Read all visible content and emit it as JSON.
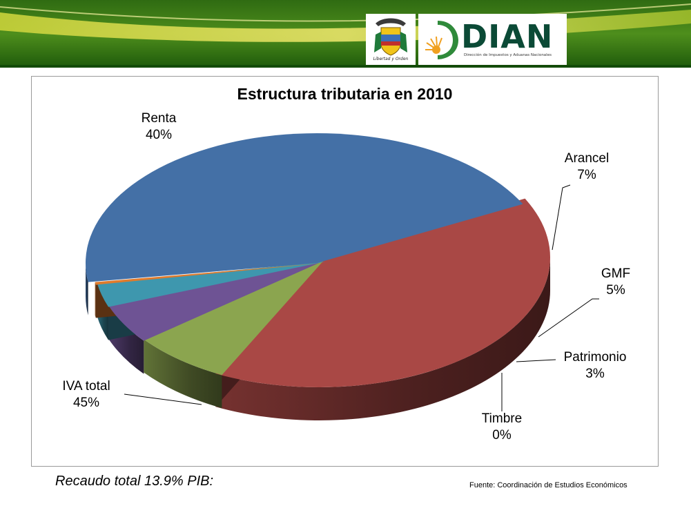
{
  "header": {
    "coat_caption": "Libertad y Orden",
    "brand_name": "DIAN",
    "brand_subtitle": "Dirección de Impuestos y Aduanas Nacionales"
  },
  "chart_data": {
    "type": "pie",
    "title": "Estructura tributaria en 2010",
    "slices": [
      {
        "label": "Renta",
        "value": 40,
        "value_label": "40%",
        "color": "#a94845"
      },
      {
        "label": "Arancel",
        "value": 7,
        "value_label": "7%",
        "color": "#8ba54f"
      },
      {
        "label": "GMF",
        "value": 5,
        "value_label": "5%",
        "color": "#6e5394"
      },
      {
        "label": "Patrimonio",
        "value": 3,
        "value_label": "3%",
        "color": "#3e97ae"
      },
      {
        "label": "Timbre",
        "value": 0,
        "value_label": "0%",
        "color": "#e07b2c"
      },
      {
        "label": "IVA total",
        "value": 45,
        "value_label": "45%",
        "color": "#4470a6"
      }
    ],
    "style": "3d-exploded"
  },
  "footer": {
    "note": "Recaudo total 13.9% PIB:",
    "source": "Fuente: Coordinación de Estudios Económicos"
  }
}
